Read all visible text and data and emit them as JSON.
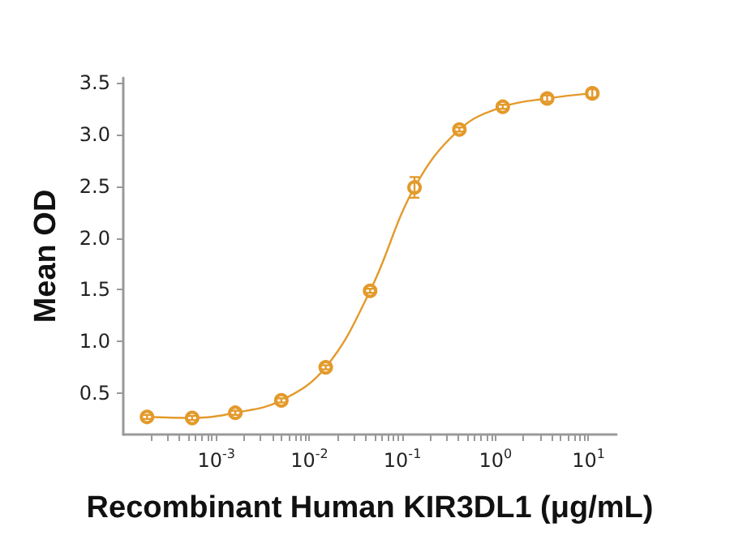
{
  "chart_data": {
    "type": "line",
    "xlabel": "Recombinant Human KIR3DL1 (μg/mL)",
    "ylabel": "Mean OD",
    "x": [
      0.00018,
      0.00055,
      0.0016,
      0.005,
      0.015,
      0.045,
      0.135,
      0.41,
      1.2,
      3.6,
      11
    ],
    "series": [
      {
        "color": "#e39a2b",
        "values": [
          0.27,
          0.26,
          0.31,
          0.43,
          0.75,
          1.49,
          2.49,
          3.05,
          3.27,
          3.35,
          3.4
        ],
        "errors": [
          0.02,
          0.02,
          0.02,
          0.02,
          0.02,
          0.02,
          0.1,
          0.02,
          0.02,
          0.03,
          0.04
        ]
      }
    ],
    "log": "x",
    "xlim": [
      0.0001,
      20
    ],
    "ylim": [
      0.1,
      3.55
    ],
    "xticks": [
      {
        "value": 0.0002,
        "label": null
      },
      {
        "value": 0.0003,
        "label": null
      },
      {
        "value": 0.0004,
        "label": null
      },
      {
        "value": 0.0005,
        "label": null
      },
      {
        "value": 0.0006,
        "label": null
      },
      {
        "value": 0.0007,
        "label": null
      },
      {
        "value": 0.0008,
        "label": null
      },
      {
        "value": 0.0009,
        "label": null
      },
      {
        "value": 0.001,
        "label": "10$^{-3}$"
      },
      {
        "value": 0.002,
        "label": null
      },
      {
        "value": 0.003,
        "label": null
      },
      {
        "value": 0.004,
        "label": null
      },
      {
        "value": 0.005,
        "label": null
      },
      {
        "value": 0.006,
        "label": null
      },
      {
        "value": 0.007,
        "label": null
      },
      {
        "value": 0.008,
        "label": null
      },
      {
        "value": 0.009,
        "label": null
      },
      {
        "value": 0.01,
        "label": "10$^{-2}$"
      },
      {
        "value": 0.02,
        "label": null
      },
      {
        "value": 0.03,
        "label": null
      },
      {
        "value": 0.04,
        "label": null
      },
      {
        "value": 0.05,
        "label": null
      },
      {
        "value": 0.06,
        "label": null
      },
      {
        "value": 0.07,
        "label": null
      },
      {
        "value": 0.08,
        "label": null
      },
      {
        "value": 0.09,
        "label": null
      },
      {
        "value": 0.1,
        "label": "10$^{-1}$"
      },
      {
        "value": 0.2,
        "label": null
      },
      {
        "value": 0.3,
        "label": null
      },
      {
        "value": 0.4,
        "label": null
      },
      {
        "value": 0.5,
        "label": null
      },
      {
        "value": 0.6,
        "label": null
      },
      {
        "value": 0.7,
        "label": null
      },
      {
        "value": 0.8,
        "label": null
      },
      {
        "value": 0.9,
        "label": null
      },
      {
        "value": 1,
        "label": "10$^{0}$"
      },
      {
        "value": 2,
        "label": null
      },
      {
        "value": 3,
        "label": null
      },
      {
        "value": 4,
        "label": null
      },
      {
        "value": 5,
        "label": null
      },
      {
        "value": 6,
        "label": null
      },
      {
        "value": 7,
        "label": null
      },
      {
        "value": 8,
        "label": null
      },
      {
        "value": 9,
        "label": null
      },
      {
        "value": 10,
        "label": "10$^{1}$"
      }
    ],
    "yticks": [
      0.5,
      {
        "value": 1,
        "label": "1.0"
      },
      1.5,
      {
        "value": 2,
        "label": "2.0"
      },
      2.5,
      {
        "value": 3,
        "label": "3.0"
      },
      3.5
    ],
    "marker": "circle",
    "grid": false
  }
}
